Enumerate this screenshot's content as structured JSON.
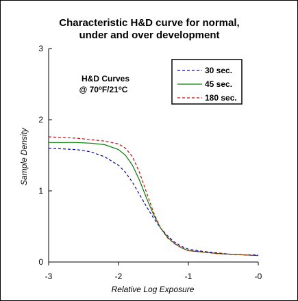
{
  "chart_data": {
    "type": "line",
    "title_lines": [
      "Characteristic H&D curve for normal,",
      "under and over development"
    ],
    "xlabel": "Relative Log Exposure",
    "ylabel": "Sample Density",
    "xlim": [
      -3,
      0
    ],
    "ylim": [
      0,
      3
    ],
    "x_ticks": [
      -3,
      -2,
      -1,
      0
    ],
    "x_tick_labels": [
      "-3",
      "-2",
      "-1",
      "-0"
    ],
    "y_ticks": [
      0,
      1,
      2,
      3
    ],
    "y_tick_labels": [
      "0",
      "1",
      "2",
      "3"
    ],
    "grid": false,
    "legend_position": "top-right",
    "annotation": {
      "line1": "H&D Curves",
      "line2_prefix": "@ 70",
      "line2_sup1": "o",
      "line2_mid": "F/21",
      "line2_sup2": "o",
      "line2_suffix": "C"
    },
    "series": [
      {
        "name": "30 sec.",
        "color": "#0000cc",
        "dash": "dashed",
        "x": [
          -3.0,
          -2.8,
          -2.6,
          -2.4,
          -2.2,
          -2.0,
          -1.9,
          -1.8,
          -1.7,
          -1.6,
          -1.5,
          -1.4,
          -1.3,
          -1.2,
          -1.1,
          -1.0,
          -0.8,
          -0.6,
          -0.4,
          -0.2,
          0.0
        ],
        "y": [
          1.6,
          1.59,
          1.58,
          1.55,
          1.48,
          1.36,
          1.26,
          1.12,
          0.95,
          0.78,
          0.62,
          0.48,
          0.37,
          0.28,
          0.22,
          0.18,
          0.15,
          0.13,
          0.11,
          0.1,
          0.1
        ]
      },
      {
        "name": "45 sec.",
        "color": "#008000",
        "dash": "solid",
        "x": [
          -3.0,
          -2.8,
          -2.6,
          -2.4,
          -2.2,
          -2.0,
          -1.9,
          -1.8,
          -1.7,
          -1.6,
          -1.5,
          -1.4,
          -1.3,
          -1.2,
          -1.1,
          -1.0,
          -0.8,
          -0.6,
          -0.4,
          -0.2,
          0.0
        ],
        "y": [
          1.68,
          1.68,
          1.68,
          1.67,
          1.65,
          1.58,
          1.5,
          1.36,
          1.15,
          0.9,
          0.67,
          0.48,
          0.35,
          0.26,
          0.2,
          0.16,
          0.14,
          0.12,
          0.11,
          0.1,
          0.09
        ]
      },
      {
        "name": "180 sec.",
        "color": "#dd0000",
        "dash": "dashed",
        "x": [
          -3.0,
          -2.8,
          -2.6,
          -2.4,
          -2.2,
          -2.0,
          -1.9,
          -1.8,
          -1.7,
          -1.6,
          -1.5,
          -1.4,
          -1.3,
          -1.2,
          -1.1,
          -1.0,
          -0.8,
          -0.6,
          -0.4,
          -0.2,
          0.0
        ],
        "y": [
          1.76,
          1.75,
          1.74,
          1.72,
          1.7,
          1.66,
          1.6,
          1.48,
          1.26,
          0.98,
          0.7,
          0.48,
          0.34,
          0.26,
          0.2,
          0.16,
          0.14,
          0.12,
          0.11,
          0.1,
          0.09
        ]
      }
    ]
  }
}
